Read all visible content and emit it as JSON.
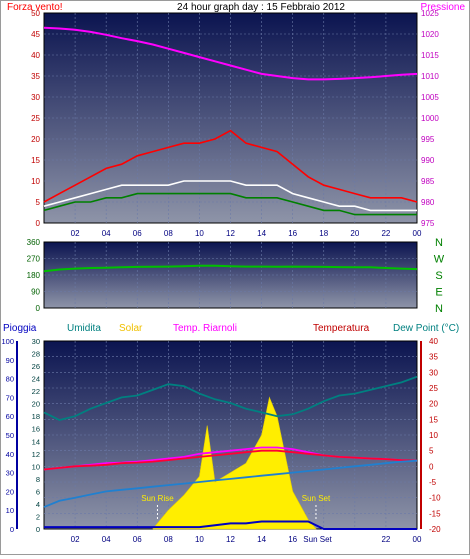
{
  "chart_data": [
    {
      "id": "wind_pressure",
      "type": "line",
      "title": "24 hour graph day : 15 Febbraio 2012",
      "left_label": "Forza vento!",
      "right_label": "Pressione",
      "x_ticks": [
        "02",
        "04",
        "06",
        "08",
        "10",
        "12",
        "14",
        "16",
        "18",
        "20",
        "22",
        "00"
      ],
      "left_ticks": [
        0,
        5,
        10,
        15,
        20,
        25,
        30,
        35,
        40,
        45,
        50
      ],
      "right_ticks": [
        975,
        980,
        985,
        990,
        995,
        1000,
        1005,
        1010,
        1015,
        1020,
        1025
      ],
      "xlim": [
        0,
        24
      ],
      "ylim_left": [
        0,
        50
      ],
      "ylim_right": [
        975,
        1025
      ],
      "grid": true,
      "series": [
        {
          "color": "#ff0000",
          "axis": "left",
          "x": [
            0,
            1,
            2,
            3,
            4,
            5,
            6,
            7,
            8,
            9,
            10,
            11,
            12,
            13,
            14,
            15,
            16,
            17,
            18,
            19,
            20,
            21,
            22,
            23,
            24
          ],
          "values": [
            5,
            7,
            9,
            11,
            13,
            14,
            16,
            17,
            18,
            19,
            19,
            20,
            22,
            19,
            18,
            17,
            14,
            11,
            9,
            8,
            7,
            6,
            6,
            6,
            5
          ]
        },
        {
          "color": "#ffffff",
          "axis": "left",
          "x": [
            0,
            1,
            2,
            3,
            4,
            5,
            6,
            7,
            8,
            9,
            10,
            11,
            12,
            13,
            14,
            15,
            16,
            17,
            18,
            19,
            20,
            21,
            22,
            23,
            24
          ],
          "values": [
            4,
            5,
            6,
            7,
            8,
            9,
            9,
            9,
            9,
            10,
            10,
            10,
            10,
            9,
            9,
            9,
            7,
            6,
            5,
            4,
            4,
            3,
            3,
            3,
            3
          ]
        },
        {
          "color": "#008000",
          "axis": "left",
          "x": [
            0,
            1,
            2,
            3,
            4,
            5,
            6,
            7,
            8,
            9,
            10,
            11,
            12,
            13,
            14,
            15,
            16,
            17,
            18,
            19,
            20,
            21,
            22,
            23,
            24
          ],
          "values": [
            3,
            4,
            5,
            5,
            6,
            6,
            7,
            7,
            7,
            7,
            7,
            7,
            7,
            6,
            6,
            6,
            5,
            4,
            3,
            3,
            2,
            2,
            2,
            2,
            2
          ]
        },
        {
          "color": "#ff00ff",
          "axis": "right",
          "x": [
            0,
            1,
            2,
            3,
            4,
            5,
            6,
            7,
            8,
            9,
            10,
            11,
            12,
            13,
            14,
            15,
            16,
            17,
            18,
            19,
            20,
            21,
            22,
            23,
            24
          ],
          "values": [
            1021.5,
            1021.3,
            1021,
            1020.5,
            1019.8,
            1019,
            1018.3,
            1017.5,
            1016.5,
            1015.5,
            1014.5,
            1013.5,
            1012.5,
            1011.5,
            1010.5,
            1010,
            1009.5,
            1009.2,
            1009.2,
            1009.3,
            1009.5,
            1009.7,
            1010,
            1010.3,
            1010.5
          ]
        }
      ]
    },
    {
      "id": "wind_direction",
      "type": "line",
      "left_ticks": [
        0,
        90,
        180,
        270,
        360
      ],
      "right_ticks": [
        "N",
        "W",
        "S",
        "E",
        "N"
      ],
      "xlim": [
        0,
        24
      ],
      "ylim": [
        0,
        360
      ],
      "grid": true,
      "series": [
        {
          "color": "#00c000",
          "x": [
            0,
            1,
            2,
            3,
            4,
            5,
            6,
            7,
            8,
            9,
            10,
            11,
            12,
            13,
            14,
            15,
            16,
            17,
            18,
            19,
            20,
            21,
            22,
            23,
            24
          ],
          "values": [
            200,
            210,
            215,
            218,
            220,
            222,
            224,
            225,
            226,
            228,
            230,
            230,
            228,
            226,
            226,
            225,
            226,
            225,
            224,
            223,
            222,
            222,
            218,
            215,
            212
          ]
        }
      ]
    },
    {
      "id": "temp_rain_solar",
      "type": "area",
      "headers": [
        {
          "text": "Pioggia",
          "color": "#0000c0"
        },
        {
          "text": "Umidita",
          "color": "#008080"
        },
        {
          "text": "Solar",
          "color": "#f0c000"
        },
        {
          "text": "Temp. Riarnoli",
          "color": "#ff00ff"
        },
        {
          "text": "Temperatura",
          "color": "#c00000"
        },
        {
          "text": "Dew Point (°C)",
          "color": "#008080"
        }
      ],
      "pioggia_ticks": [
        0,
        10,
        20,
        30,
        40,
        50,
        60,
        70,
        80,
        90,
        100
      ],
      "umidita_ticks": [
        0,
        2,
        4,
        6,
        8,
        10,
        12,
        14,
        16,
        18,
        20,
        22,
        24,
        26,
        28,
        30
      ],
      "temp_ticks": [
        -20,
        -15,
        -10,
        -5,
        0,
        5,
        10,
        15,
        20,
        25,
        30,
        35,
        40
      ],
      "x_ticks": [
        "02",
        "04",
        "06",
        "08",
        "10",
        "12",
        "14",
        "16",
        "Sun Set",
        "22",
        "00"
      ],
      "annotations": [
        "Sun Rise",
        "Sun Set"
      ],
      "ylim_left": [
        0,
        100
      ],
      "ylim_temp": [
        -20,
        40
      ],
      "grid": true,
      "series": [
        {
          "name": "Umidita",
          "color": "#008080",
          "axis": "left",
          "x": [
            0,
            1,
            2,
            3,
            4,
            5,
            6,
            7,
            8,
            9,
            10,
            11,
            12,
            13,
            14,
            15,
            16,
            17,
            18,
            19,
            20,
            21,
            22,
            23,
            24
          ],
          "values": [
            62,
            58,
            60,
            64,
            67,
            70,
            71,
            74,
            77,
            76,
            72,
            69,
            67,
            64,
            62,
            60,
            61,
            64,
            68,
            71,
            72,
            74,
            76,
            78,
            81
          ]
        },
        {
          "name": "Temp. Riarnoli",
          "color": "#ff00ff",
          "axis": "temp",
          "x": [
            0,
            1,
            2,
            3,
            4,
            5,
            6,
            7,
            8,
            9,
            10,
            11,
            12,
            13,
            14,
            15,
            16,
            17,
            18,
            19,
            20,
            21,
            22,
            23,
            24
          ],
          "values": [
            -1,
            -0.5,
            0,
            0.5,
            1,
            1.2,
            1.5,
            2,
            2.5,
            3,
            4,
            4.5,
            5,
            5.5,
            6,
            6,
            5.5,
            4.5,
            3.5,
            3,
            2.8,
            2.5,
            2.3,
            2,
            1.8
          ]
        },
        {
          "name": "Temperatura",
          "color": "#ff0033",
          "axis": "temp",
          "x": [
            0,
            1,
            2,
            3,
            4,
            5,
            6,
            7,
            8,
            9,
            10,
            11,
            12,
            13,
            14,
            15,
            16,
            17,
            18,
            19,
            20,
            21,
            22,
            23,
            24
          ],
          "values": [
            -1,
            -0.5,
            0,
            0.2,
            0.5,
            1,
            1.2,
            1.5,
            2,
            2.5,
            3,
            3.5,
            4,
            4.5,
            5,
            5,
            4.5,
            4,
            3.5,
            3,
            2.8,
            2.5,
            2.3,
            2,
            1.8
          ]
        },
        {
          "name": "Dew Point",
          "color": "#2080d0",
          "axis": "temp",
          "x": [
            0,
            1,
            2,
            3,
            4,
            5,
            6,
            7,
            8,
            9,
            10,
            11,
            12,
            13,
            14,
            15,
            16,
            17,
            18,
            19,
            20,
            21,
            22,
            23,
            24
          ],
          "values": [
            -13,
            -11,
            -10,
            -9,
            -8,
            -7.5,
            -7,
            -6.5,
            -6,
            -5.5,
            -5,
            -4.5,
            -4,
            -3.5,
            -3,
            -2.5,
            -2,
            -1.5,
            -1,
            -0.5,
            0,
            0.5,
            1,
            1.5,
            1.8
          ]
        },
        {
          "name": "Pioggia",
          "color": "#0000c0",
          "axis": "left",
          "x": [
            0,
            1,
            2,
            3,
            4,
            5,
            6,
            7,
            8,
            9,
            10,
            11,
            12,
            13,
            14,
            15,
            16,
            17,
            18,
            19,
            20,
            21,
            22,
            23,
            24
          ],
          "values": [
            1,
            1,
            1,
            1,
            1,
            1,
            1,
            1,
            1,
            1,
            1,
            2,
            3,
            3,
            4,
            4,
            4,
            4,
            0,
            0,
            0,
            0,
            0,
            0,
            0
          ]
        },
        {
          "name": "Solar",
          "color": "#ffee00",
          "axis": "left",
          "x": [
            7,
            8,
            9,
            10,
            10.5,
            11,
            12,
            13,
            14,
            14.5,
            15,
            15.5,
            16,
            17,
            17.5
          ],
          "values": [
            0,
            10,
            18,
            28,
            55,
            25,
            30,
            35,
            50,
            70,
            60,
            40,
            20,
            5,
            0
          ]
        }
      ]
    }
  ]
}
